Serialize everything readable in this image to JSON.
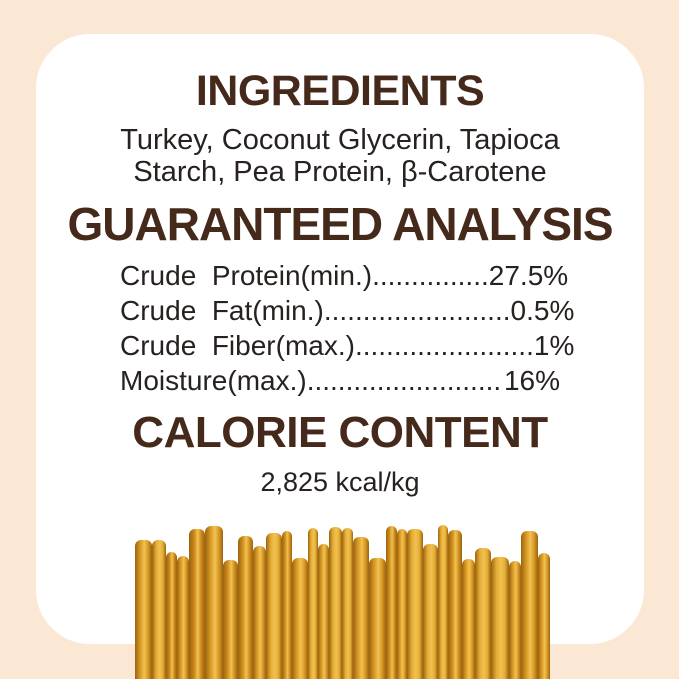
{
  "theme": {
    "page_background": "#FBE8D4",
    "card_background": "#FFFFFF",
    "heading_color": "#45291A",
    "body_text_color": "#27211F"
  },
  "sections": {
    "ingredients": {
      "title": "INGREDIENTS",
      "lines": [
        "Turkey, Coconut Glycerin, Tapioca",
        "Starch, Pea Protein, β-Carotene"
      ]
    },
    "guaranteed_analysis": {
      "title": "GUARANTEED ANALYSIS",
      "rows": [
        {
          "label": "Crude  Protein(min.)...............",
          "value": "27.5%"
        },
        {
          "label": "Crude  Fat(min.)........................",
          "value": "0.5%"
        },
        {
          "label": "Crude  Fiber(max.).......................",
          "value": "1%"
        },
        {
          "label": "Moisture(max.).........................",
          "value": "16%"
        }
      ]
    },
    "calorie_content": {
      "title": "CALORIE CONTENT",
      "value": "2,825 kcal/kg"
    }
  },
  "product_image": {
    "description": "Bundle of golden-yellow chew sticks standing upright",
    "stick_count": 30,
    "stick_colors": [
      "#DD9A22",
      "#E5AC33",
      "#CE8C1B",
      "#D79723",
      "#C98417"
    ],
    "stick_highlight": "#F0C253",
    "stick_shadow": "#9A6410"
  }
}
